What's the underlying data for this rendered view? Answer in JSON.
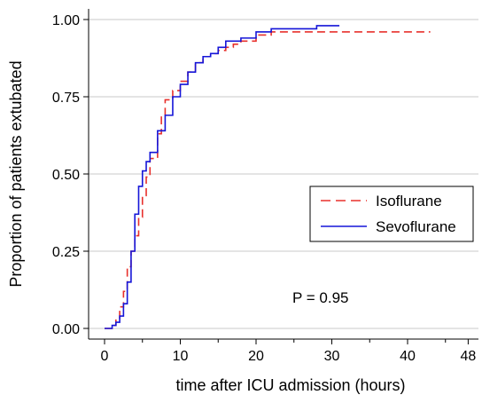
{
  "chart_data": {
    "type": "line",
    "title": "",
    "xlabel": "time after ICU admission (hours)",
    "ylabel": "Proportion of patients extubated",
    "xlim": [
      0,
      50
    ],
    "ylim": [
      0,
      1
    ],
    "x_ticks": [
      0,
      10,
      20,
      30,
      40,
      48
    ],
    "x_tick_labels": [
      "0",
      "10",
      "20",
      "30",
      "40",
      "48"
    ],
    "y_ticks": [
      0,
      0.25,
      0.5,
      0.75,
      1
    ],
    "y_tick_labels": [
      "0.00",
      "0.25",
      "0.50",
      "0.75",
      "1.00"
    ],
    "grid": "horizontal",
    "legend_position": "center-right",
    "annotation": "P = 0.95",
    "series": [
      {
        "name": "Isoflurane",
        "color": "#e8302c",
        "dash": "dashed",
        "x": [
          0,
          1,
          1.5,
          2,
          2.5,
          3,
          3.5,
          4,
          4.5,
          5,
          5.5,
          6,
          7,
          7.5,
          8,
          9,
          10,
          11,
          12,
          13,
          14,
          15,
          16,
          17,
          18,
          20,
          22,
          25,
          30,
          35,
          43
        ],
        "y": [
          0,
          0.01,
          0.03,
          0.07,
          0.12,
          0.2,
          0.25,
          0.3,
          0.36,
          0.43,
          0.49,
          0.55,
          0.63,
          0.69,
          0.74,
          0.77,
          0.8,
          0.83,
          0.86,
          0.88,
          0.89,
          0.9,
          0.91,
          0.92,
          0.93,
          0.95,
          0.96,
          0.96,
          0.96,
          0.96,
          0.96
        ]
      },
      {
        "name": "Sevoflurane",
        "color": "#1515d8",
        "dash": "solid",
        "x": [
          0,
          1,
          1.5,
          2,
          2.5,
          3,
          3.5,
          4,
          4.5,
          5,
          5.5,
          6,
          7,
          8,
          9,
          10,
          11,
          12,
          13,
          14,
          15,
          16,
          17,
          18,
          20,
          22,
          25,
          28,
          31
        ],
        "y": [
          0,
          0.01,
          0.02,
          0.04,
          0.08,
          0.15,
          0.25,
          0.37,
          0.46,
          0.51,
          0.54,
          0.57,
          0.64,
          0.69,
          0.75,
          0.79,
          0.83,
          0.86,
          0.88,
          0.89,
          0.91,
          0.93,
          0.93,
          0.94,
          0.96,
          0.97,
          0.97,
          0.98,
          0.98
        ]
      }
    ]
  }
}
